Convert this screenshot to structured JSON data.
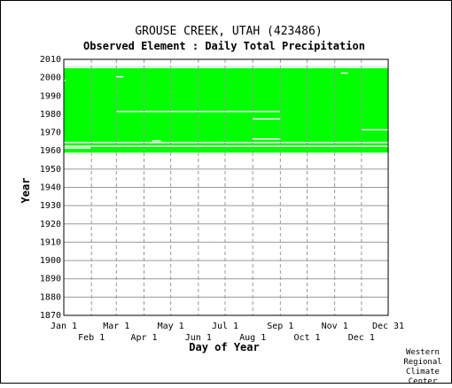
{
  "chart_data": {
    "type": "heatmap",
    "title": "GROUSE CREEK, UTAH   (423486)",
    "subtitle": "Observed Element : Daily Total Precipitation",
    "xlabel": "Day of Year",
    "ylabel": "Year",
    "credit": [
      "Western",
      "Regional",
      "Climate",
      "Center"
    ],
    "x_ticks_top": [
      "Jan 1",
      "Mar 1",
      "May 1",
      "Jul 1",
      "Sep 1",
      "Nov 1",
      "Dec 31"
    ],
    "x_ticks_bottom": [
      "Feb 1",
      "Apr 1",
      "Jun 1",
      "Aug 1",
      "Oct 1",
      "Dec 1"
    ],
    "x_tick_days": [
      1,
      32,
      60,
      91,
      121,
      152,
      182,
      213,
      244,
      274,
      305,
      335,
      365
    ],
    "xlim": [
      1,
      365
    ],
    "ylim": [
      1870,
      2010
    ],
    "y_ticks": [
      1870,
      1880,
      1890,
      1900,
      1910,
      1920,
      1930,
      1940,
      1950,
      1960,
      1970,
      1980,
      1990,
      2000,
      2010
    ],
    "data_color": "#00ff00",
    "grid": true,
    "coverage": {
      "start": "1959-01-01",
      "end": "2005-12-31",
      "note_block": "green = data present"
    },
    "gaps": [
      {
        "year": 1961,
        "day_start": 1,
        "day_end": 31
      },
      {
        "year": 1962,
        "day_start": 1,
        "day_end": 365
      },
      {
        "year": 1964,
        "day_start": 1,
        "day_end": 365
      },
      {
        "year": 1965,
        "day_start": 100,
        "day_end": 110
      },
      {
        "year": 1966,
        "day_start": 213,
        "day_end": 244
      },
      {
        "year": 1971,
        "day_start": 335,
        "day_end": 365
      },
      {
        "year": 1977,
        "day_start": 213,
        "day_end": 244
      },
      {
        "year": 1981,
        "day_start": 60,
        "day_end": 244
      },
      {
        "year": 1998,
        "day_start": 1,
        "day_end": 3
      },
      {
        "year": 2000,
        "day_start": 60,
        "day_end": 68
      },
      {
        "year": 2002,
        "day_start": 312,
        "day_end": 320
      },
      {
        "year": 2005,
        "day_start": 1,
        "day_end": 365
      }
    ]
  }
}
